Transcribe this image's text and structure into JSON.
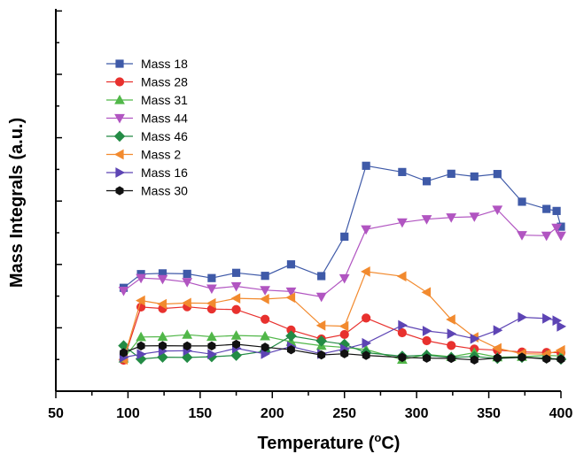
{
  "chart_data": {
    "type": "line",
    "title": "",
    "xlabel_text": "Temperature (",
    "xlabel_sup": "o",
    "xlabel_tail": "C)",
    "ylabel": "Mass Integrals (a.u.)",
    "xlim": [
      50,
      400
    ],
    "xticks": [
      "50",
      "100",
      "150",
      "200",
      "250",
      "300",
      "350",
      "400"
    ],
    "ylim": [
      0,
      1
    ],
    "y_tick_labels_shown": false,
    "grid": false,
    "legend_position": "top-left",
    "series": [
      {
        "name": "Mass 18",
        "color": "#3f5aa8",
        "marker": "square",
        "points": [
          [
            97,
            0.29
          ],
          [
            109,
            0.345
          ],
          [
            124,
            0.348
          ],
          [
            141,
            0.346
          ],
          [
            158,
            0.329
          ],
          [
            175,
            0.35
          ],
          [
            195,
            0.338
          ],
          [
            213,
            0.384
          ],
          [
            234,
            0.337
          ],
          [
            250,
            0.495
          ],
          [
            265,
            0.779
          ],
          [
            290,
            0.754
          ],
          [
            307,
            0.717
          ],
          [
            324,
            0.747
          ],
          [
            340,
            0.736
          ],
          [
            356,
            0.746
          ],
          [
            373,
            0.635
          ],
          [
            390,
            0.606
          ],
          [
            397,
            0.598
          ],
          [
            400,
            0.535
          ]
        ]
      },
      {
        "name": "Mass 28",
        "color": "#e8312e",
        "marker": "circle",
        "points": [
          [
            97,
            0.0
          ],
          [
            109,
            0.213
          ],
          [
            124,
            0.207
          ],
          [
            141,
            0.214
          ],
          [
            158,
            0.205
          ],
          [
            175,
            0.203
          ],
          [
            195,
            0.164
          ],
          [
            213,
            0.121
          ],
          [
            234,
            0.085
          ],
          [
            250,
            0.103
          ],
          [
            265,
            0.169
          ],
          [
            290,
            0.11
          ],
          [
            307,
            0.078
          ],
          [
            324,
            0.059
          ],
          [
            340,
            0.045
          ],
          [
            356,
            0.04
          ],
          [
            373,
            0.033
          ],
          [
            390,
            0.031
          ],
          [
            400,
            0.03
          ]
        ]
      },
      {
        "name": "Mass 31",
        "color": "#51b749",
        "marker": "triangle-up",
        "points": [
          [
            97,
            0.007
          ],
          [
            109,
            0.093
          ],
          [
            124,
            0.094
          ],
          [
            141,
            0.102
          ],
          [
            158,
            0.094
          ],
          [
            175,
            0.099
          ],
          [
            195,
            0.096
          ],
          [
            213,
            0.074
          ],
          [
            234,
            0.058
          ],
          [
            250,
            0.051
          ],
          [
            265,
            0.043
          ],
          [
            290,
            0.002
          ],
          [
            307,
            0.023
          ],
          [
            324,
            0.014
          ],
          [
            340,
            0.03
          ],
          [
            356,
            0.012
          ],
          [
            373,
            0.014
          ],
          [
            390,
            0.019
          ],
          [
            400,
            0.017
          ]
        ]
      },
      {
        "name": "Mass 44",
        "color": "#b155c1",
        "marker": "triangle-down",
        "points": [
          [
            97,
            0.278
          ],
          [
            109,
            0.329
          ],
          [
            124,
            0.325
          ],
          [
            141,
            0.313
          ],
          [
            158,
            0.287
          ],
          [
            175,
            0.296
          ],
          [
            195,
            0.281
          ],
          [
            213,
            0.275
          ],
          [
            234,
            0.254
          ],
          [
            250,
            0.328
          ],
          [
            265,
            0.524
          ],
          [
            290,
            0.552
          ],
          [
            307,
            0.565
          ],
          [
            324,
            0.572
          ],
          [
            340,
            0.575
          ],
          [
            356,
            0.603
          ],
          [
            373,
            0.501
          ],
          [
            390,
            0.499
          ],
          [
            397,
            0.531
          ],
          [
            400,
            0.499
          ]
        ]
      },
      {
        "name": "Mass 46",
        "color": "#238b45",
        "marker": "diamond",
        "points": [
          [
            97,
            0.058
          ],
          [
            109,
            0.005
          ],
          [
            124,
            0.012
          ],
          [
            141,
            0.011
          ],
          [
            158,
            0.014
          ],
          [
            175,
            0.019
          ],
          [
            195,
            0.036
          ],
          [
            213,
            0.097
          ],
          [
            234,
            0.077
          ],
          [
            250,
            0.064
          ],
          [
            265,
            0.03
          ],
          [
            290,
            0.016
          ],
          [
            307,
            0.02
          ],
          [
            324,
            0.011
          ],
          [
            340,
            0.015
          ],
          [
            356,
            0.007
          ],
          [
            373,
            0.011
          ],
          [
            390,
            0.008
          ],
          [
            400,
            0.004
          ]
        ]
      },
      {
        "name": "Mass 2",
        "color": "#f28a2e",
        "marker": "triangle-left",
        "points": [
          [
            97,
            0.003
          ],
          [
            109,
            0.239
          ],
          [
            124,
            0.225
          ],
          [
            141,
            0.229
          ],
          [
            158,
            0.228
          ],
          [
            175,
            0.248
          ],
          [
            195,
            0.245
          ],
          [
            213,
            0.251
          ],
          [
            234,
            0.139
          ],
          [
            250,
            0.136
          ],
          [
            265,
            0.355
          ],
          [
            290,
            0.336
          ],
          [
            307,
            0.272
          ],
          [
            324,
            0.163
          ],
          [
            340,
            0.092
          ],
          [
            356,
            0.048
          ],
          [
            373,
            0.026
          ],
          [
            390,
            0.024
          ],
          [
            400,
            0.04
          ]
        ]
      },
      {
        "name": "Mass 16",
        "color": "#5d44b4",
        "marker": "triangle-right",
        "points": [
          [
            97,
            0.011
          ],
          [
            109,
            0.024
          ],
          [
            124,
            0.037
          ],
          [
            141,
            0.038
          ],
          [
            158,
            0.024
          ],
          [
            175,
            0.048
          ],
          [
            195,
            0.025
          ],
          [
            213,
            0.055
          ],
          [
            234,
            0.025
          ],
          [
            250,
            0.045
          ],
          [
            265,
            0.068
          ],
          [
            290,
            0.14
          ],
          [
            307,
            0.117
          ],
          [
            324,
            0.106
          ],
          [
            340,
            0.086
          ],
          [
            356,
            0.12
          ],
          [
            373,
            0.172
          ],
          [
            390,
            0.167
          ],
          [
            397,
            0.159
          ],
          [
            400,
            0.135
          ]
        ]
      },
      {
        "name": "Mass 30",
        "color": "#111111",
        "marker": "hexagon",
        "points": [
          [
            97,
            0.03
          ],
          [
            109,
            0.057
          ],
          [
            124,
            0.058
          ],
          [
            141,
            0.057
          ],
          [
            158,
            0.057
          ],
          [
            175,
            0.064
          ],
          [
            195,
            0.052
          ],
          [
            213,
            0.042
          ],
          [
            234,
            0.021
          ],
          [
            250,
            0.026
          ],
          [
            265,
            0.019
          ],
          [
            290,
            0.011
          ],
          [
            307,
            0.008
          ],
          [
            324,
            0.007
          ],
          [
            340,
            0.001
          ],
          [
            356,
            0.009
          ],
          [
            373,
            0.012
          ],
          [
            390,
            0.005
          ],
          [
            400,
            0.004
          ]
        ]
      }
    ]
  }
}
